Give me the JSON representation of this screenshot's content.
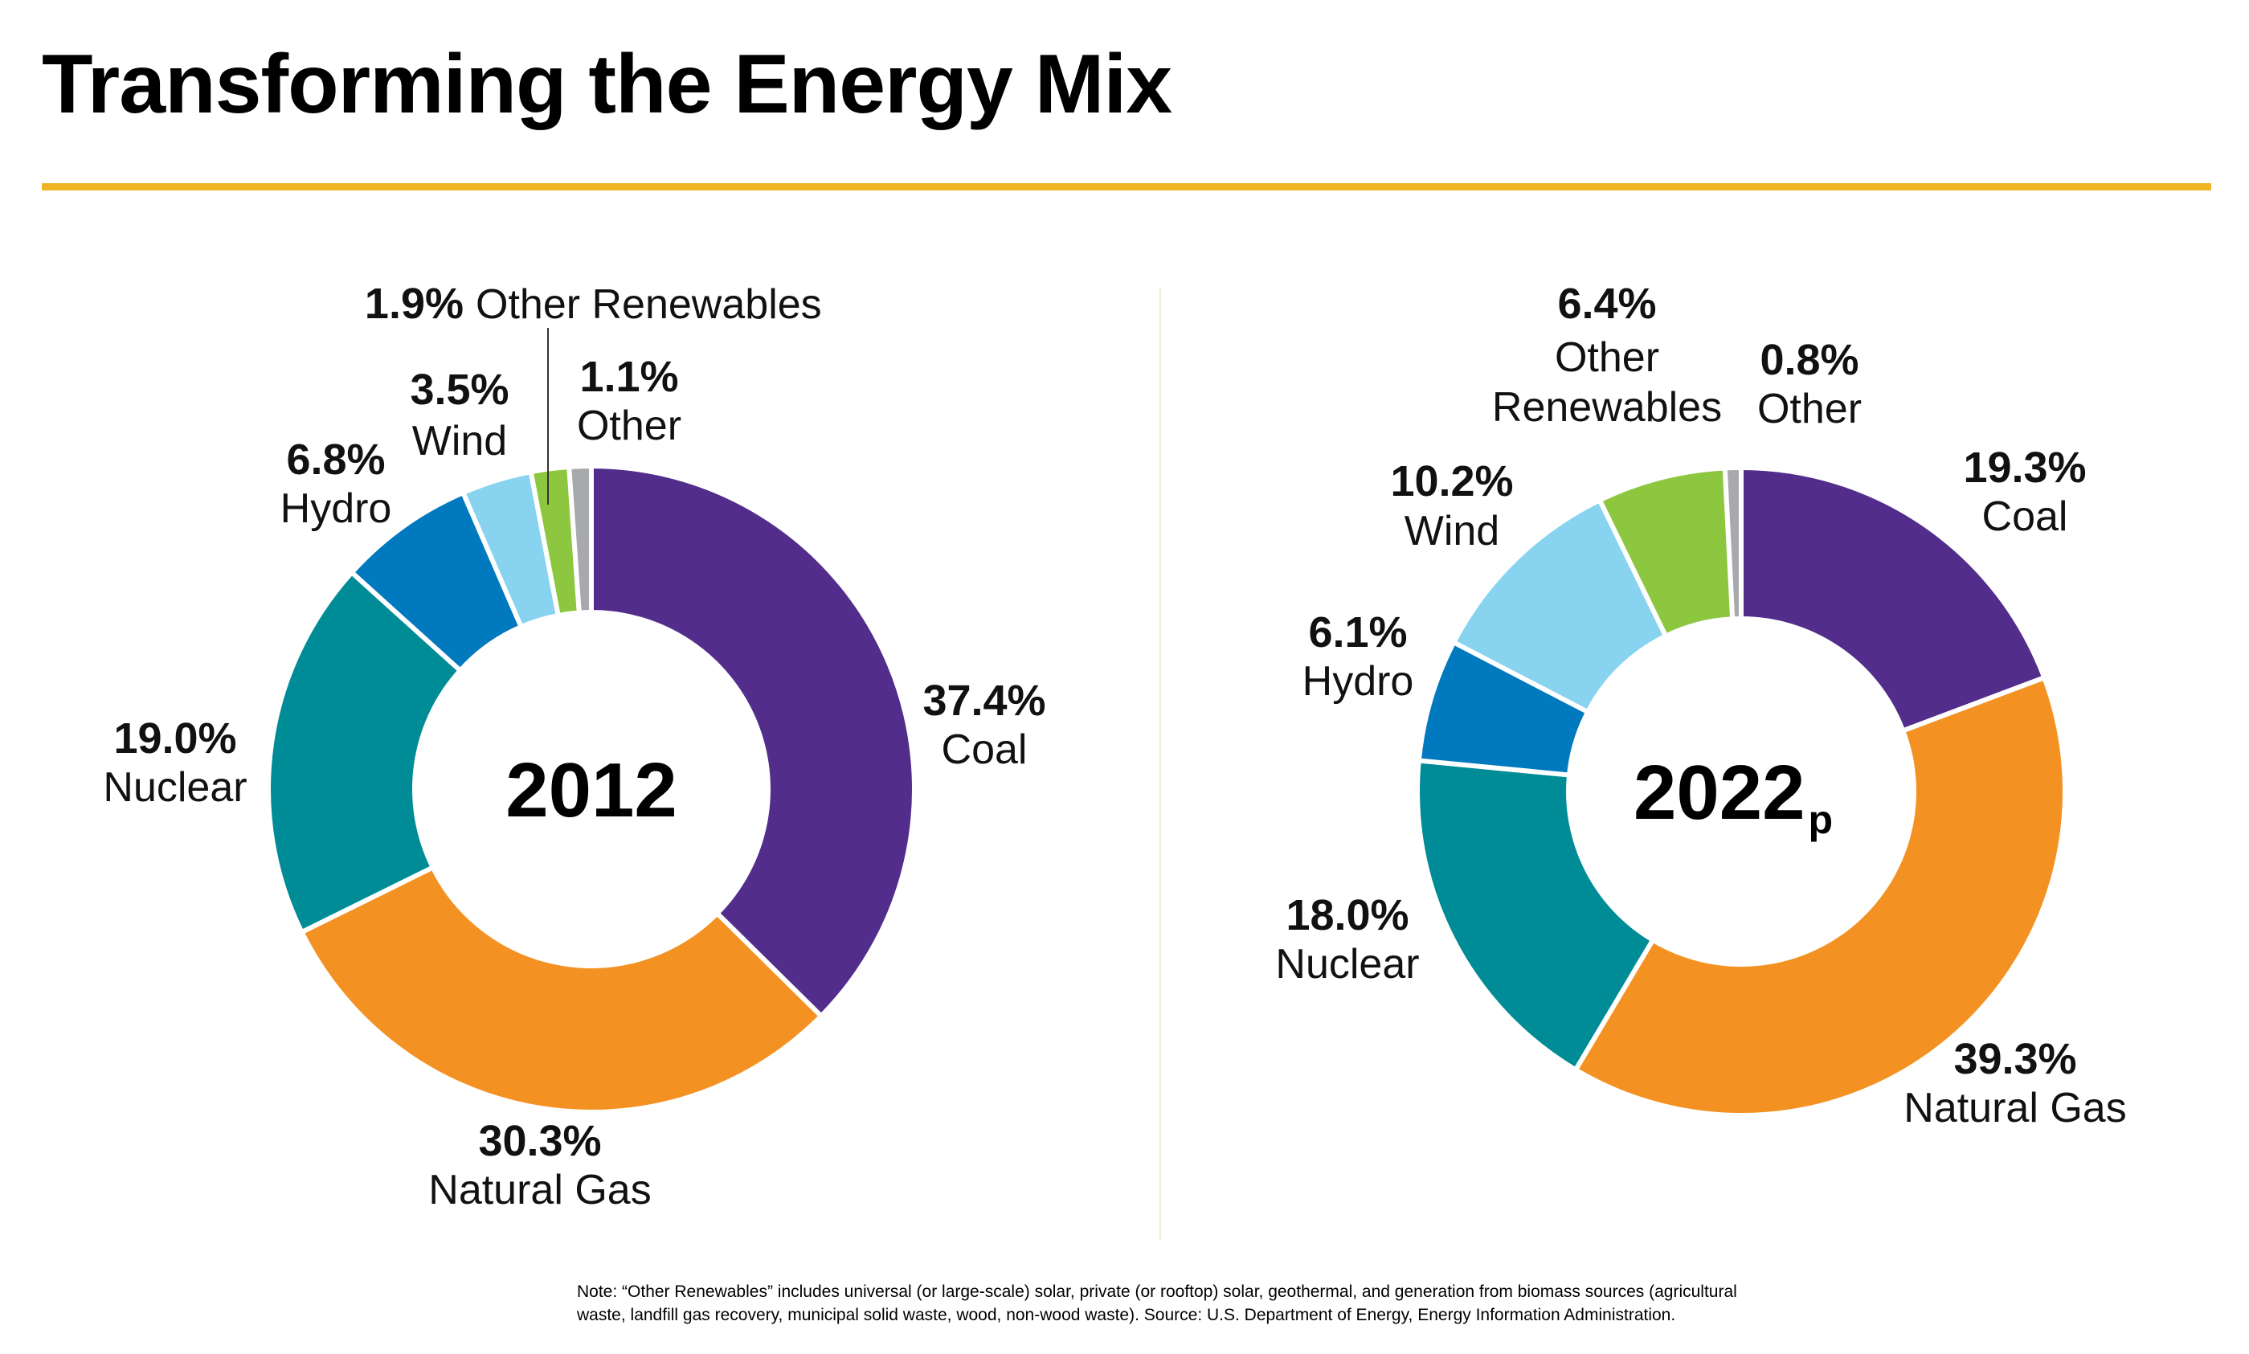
{
  "title": "Transforming the Energy Mix",
  "footnote": "Note: “Other Renewables” includes universal (or large-scale) solar, private (or rooftop) solar, geothermal, and generation from biomass sources (agricultural waste, landfill gas recovery, municipal solid waste, wood, non-wood waste). Source: U.S. Department of Energy, Energy Information Administration.",
  "colors": {
    "Coal": "#522d8c",
    "Natural Gas": "#f39222",
    "Nuclear": "#008c96",
    "Hydro": "#0079be",
    "Wind": "#88d3f0",
    "Other Renewables": "#8dc63f",
    "Other": "#a7a9ac",
    "accent_rule": "#f0b323"
  },
  "chart_data": [
    {
      "type": "pie",
      "center_label": "2012",
      "center_suffix": "",
      "slices": [
        {
          "name": "Coal",
          "label": "Coal",
          "value": 37.4,
          "pct": "37.4%"
        },
        {
          "name": "Natural Gas",
          "label": "Natural Gas",
          "value": 30.3,
          "pct": "30.3%"
        },
        {
          "name": "Nuclear",
          "label": "Nuclear",
          "value": 19.0,
          "pct": "19.0%"
        },
        {
          "name": "Hydro",
          "label": "Hydro",
          "value": 6.8,
          "pct": "6.8%"
        },
        {
          "name": "Wind",
          "label": "Wind",
          "value": 3.5,
          "pct": "3.5%"
        },
        {
          "name": "Other Renewables",
          "label": "Other Renewables",
          "value": 1.9,
          "pct": "1.9%"
        },
        {
          "name": "Other",
          "label": "Other",
          "value": 1.1,
          "pct": "1.1%"
        }
      ]
    },
    {
      "type": "pie",
      "center_label": "2022",
      "center_suffix": "p",
      "slices": [
        {
          "name": "Coal",
          "label": "Coal",
          "value": 19.3,
          "pct": "19.3%"
        },
        {
          "name": "Natural Gas",
          "label": "Natural Gas",
          "value": 39.3,
          "pct": "39.3%"
        },
        {
          "name": "Nuclear",
          "label": "Nuclear",
          "value": 18.0,
          "pct": "18.0%"
        },
        {
          "name": "Hydro",
          "label": "Hydro",
          "value": 6.1,
          "pct": "6.1%"
        },
        {
          "name": "Wind",
          "label": "Wind",
          "value": 10.2,
          "pct": "10.2%"
        },
        {
          "name": "Other Renewables",
          "label": "Other Renewables",
          "value": 6.4,
          "pct": "6.4%"
        },
        {
          "name": "Other",
          "label": "Other",
          "value": 0.8,
          "pct": "0.8%"
        }
      ]
    }
  ]
}
